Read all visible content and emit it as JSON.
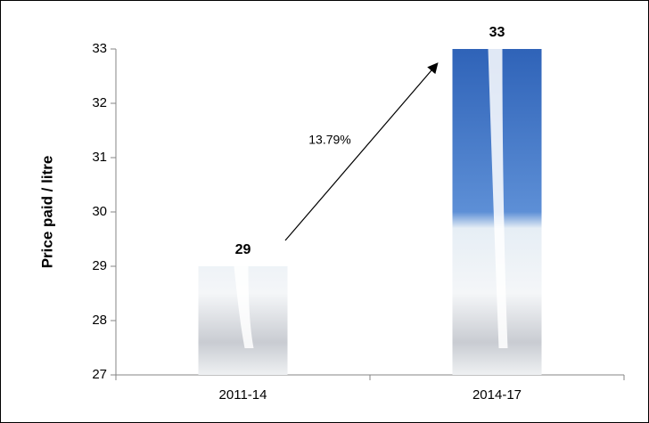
{
  "chart_data": {
    "type": "bar",
    "y_label": "Price paid /  litre",
    "categories": [
      "2011-14",
      "2014-17"
    ],
    "values": [
      29,
      33
    ],
    "ylim": [
      27,
      33
    ],
    "yticks": [
      27,
      28,
      29,
      30,
      31,
      32,
      33
    ],
    "annotation": "13.79%"
  }
}
